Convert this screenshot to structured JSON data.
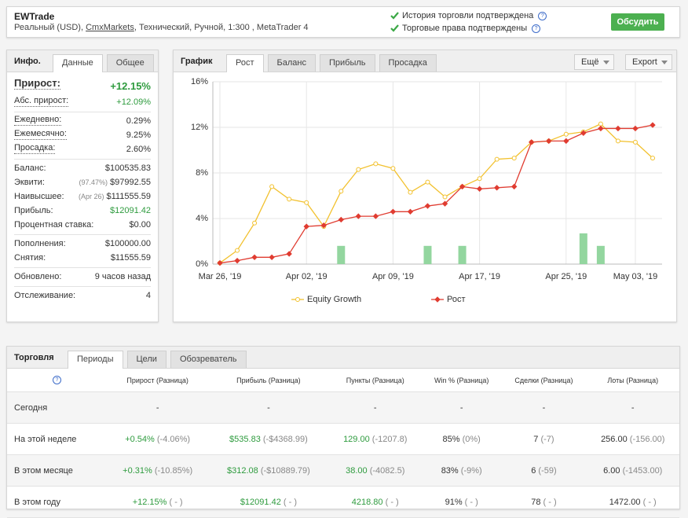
{
  "header": {
    "title": "EWTrade",
    "subtitle": [
      "Реальный (USD), ",
      "CmxMarkets",
      ", Технический, Ручной, 1:300 , MetaTrader 4"
    ],
    "checks": [
      "История торговли подтверждена",
      "Торговые права подтверждены"
    ],
    "button": "Обсудить"
  },
  "info": {
    "title": "Инфо.",
    "tabs": [
      "Данные",
      "Общее"
    ],
    "sections": [
      [
        {
          "label": "Прирост:",
          "value": "+12.15%",
          "color": "#2e9b3e"
        },
        {
          "label": "Абс. прирост:",
          "value": "+12.09%",
          "color": "#2e9b3e"
        }
      ],
      [
        {
          "label": "Ежедневно:",
          "value": "0.29%"
        },
        {
          "label": "Ежемесячно:",
          "value": "9.25%"
        },
        {
          "label": "Просадка:",
          "value": "2.60%"
        }
      ],
      [
        {
          "label": "Баланс:",
          "value": "$100535.83"
        },
        {
          "label": "Эквити:",
          "note": "(97.47%)",
          "value": "$97992.55"
        },
        {
          "label": "Наивысшее:",
          "note": "(Apr 26)",
          "value": "$111555.59"
        },
        {
          "label": "Прибыль:",
          "value": "$12091.42",
          "color": "#2e9b3e"
        },
        {
          "label": "Процентная ставка:",
          "value": "$0.00"
        }
      ],
      [
        {
          "label": "Пополнения:",
          "value": "$100000.00"
        },
        {
          "label": "Снятия:",
          "value": "$11555.59"
        }
      ],
      [
        {
          "label": "Обновлено:",
          "value": "9 часов назад"
        }
      ],
      [
        {
          "label": "Отслеживание:",
          "value": "4"
        }
      ]
    ]
  },
  "chart_panel": {
    "title": "График",
    "tabs": [
      "Рост",
      "Баланс",
      "Прибыль",
      "Просадка"
    ],
    "buttons": [
      "Ещё",
      "Export"
    ]
  },
  "chart_data": {
    "type": "line",
    "categories": [
      "Mar 26, '19",
      null,
      null,
      null,
      null,
      "Apr 02, '19",
      null,
      null,
      null,
      null,
      "Apr 09, '19",
      null,
      null,
      null,
      null,
      "Apr 17, '19",
      null,
      null,
      null,
      null,
      "Apr 25, '19",
      null,
      null,
      null,
      "May 03, '19",
      null
    ],
    "series": [
      {
        "name": "Equity Growth",
        "type": "line",
        "color": "#f2c12e",
        "marker": "circle",
        "values": [
          0.1,
          1.2,
          3.6,
          6.8,
          5.7,
          5.4,
          3.3,
          6.4,
          8.3,
          8.8,
          8.4,
          6.3,
          7.2,
          5.9,
          6.8,
          7.5,
          9.2,
          9.3,
          10.7,
          10.8,
          11.4,
          11.6,
          12.3,
          10.8,
          10.7,
          9.3
        ]
      },
      {
        "name": "Рост",
        "type": "line",
        "color": "#e03c31",
        "marker": "diamond",
        "values": [
          0.1,
          0.3,
          0.6,
          0.6,
          0.9,
          3.3,
          3.4,
          3.9,
          4.2,
          4.2,
          4.6,
          4.6,
          5.1,
          5.3,
          6.8,
          6.6,
          6.7,
          6.8,
          10.7,
          10.8,
          10.8,
          11.5,
          11.9,
          11.9,
          11.9,
          12.2
        ]
      },
      {
        "type": "bar",
        "color": "#93d69f",
        "values": [
          null,
          null,
          null,
          null,
          null,
          null,
          null,
          1.6,
          null,
          null,
          null,
          null,
          1.6,
          null,
          1.6,
          null,
          null,
          null,
          null,
          null,
          null,
          2.7,
          1.6,
          null,
          null,
          null
        ]
      }
    ],
    "ylim": [
      0,
      16
    ],
    "yticks": [
      {
        "value": 0,
        "label": "0%"
      },
      {
        "value": 4,
        "label": "4%"
      },
      {
        "value": 8,
        "label": "8%"
      },
      {
        "value": 12,
        "label": "12%"
      },
      {
        "value": 16,
        "label": "16%"
      }
    ],
    "grid": true
  },
  "trading": {
    "title": "Торговля",
    "tabs": [
      "Периоды",
      "Цели",
      "Обозреватель"
    ],
    "columns": [
      "Прирост (Разница)",
      "Прибыль (Разница)",
      "Пункты (Разница)",
      "Win % (Разница)",
      "Сделки (Разница)",
      "Лоты (Разница)"
    ],
    "rows": [
      {
        "label": "Сегодня",
        "cells": [
          {
            "main": "-"
          },
          {
            "main": "-"
          },
          {
            "main": "-"
          },
          {
            "main": "-"
          },
          {
            "main": "-"
          },
          {
            "main": "-"
          }
        ]
      },
      {
        "label": "На этой неделе",
        "cells": [
          {
            "main": "+0.54%",
            "diff": "(-4.06%)"
          },
          {
            "main": "$535.83",
            "diff": "(-$4368.99)"
          },
          {
            "main": "129.00",
            "diff": "(-1207.8)"
          },
          {
            "main": "85%",
            "diff": "(0%)"
          },
          {
            "main": "7",
            "diff": "(-7)"
          },
          {
            "main": "256.00",
            "diff": "(-156.00)"
          }
        ]
      },
      {
        "label": "В этом месяце",
        "cells": [
          {
            "main": "+0.31%",
            "diff": "(-10.85%)"
          },
          {
            "main": "$312.08",
            "diff": "(-$10889.79)"
          },
          {
            "main": "38.00",
            "diff": "(-4082.5)"
          },
          {
            "main": "83%",
            "diff": "(-9%)"
          },
          {
            "main": "6",
            "diff": "(-59)"
          },
          {
            "main": "6.00",
            "diff": "(-1453.00)"
          }
        ]
      },
      {
        "label": "В этом году",
        "cells": [
          {
            "main": "+12.15%",
            "diff": "( - )"
          },
          {
            "main": "$12091.42",
            "diff": "( - )"
          },
          {
            "main": "4218.80",
            "diff": "( - )"
          },
          {
            "main": "91%",
            "diff": "( - )"
          },
          {
            "main": "78",
            "diff": "( - )"
          },
          {
            "main": "1472.00",
            "diff": "( - )"
          }
        ]
      }
    ]
  }
}
